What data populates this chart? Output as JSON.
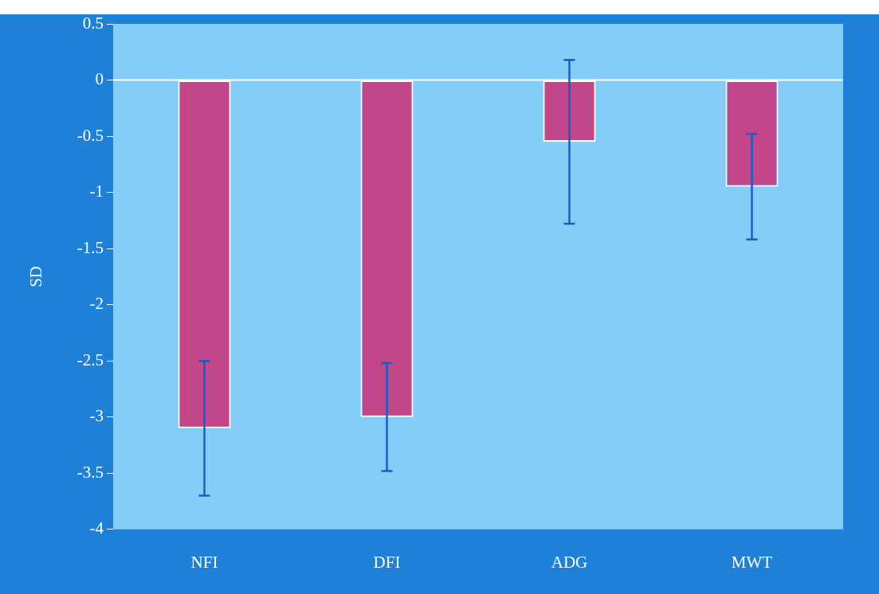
{
  "chart_data": {
    "type": "bar",
    "ylabel": "SD",
    "categories": [
      "NFI",
      "DFI",
      "ADG",
      "MWT"
    ],
    "values": [
      -3.1,
      -3.0,
      -0.55,
      -0.95
    ],
    "errors": [
      0.6,
      0.48,
      0.73,
      0.47
    ],
    "color": "#c2478a",
    "ylim": [
      -4,
      0.5
    ],
    "yticks": [
      0.5,
      0,
      -0.5,
      -1,
      -1.5,
      -2,
      -2.5,
      -3,
      -3.5,
      -4
    ],
    "ref_lines": [
      {
        "axis": "y",
        "value": 0,
        "color": "#ffffff"
      }
    ]
  }
}
